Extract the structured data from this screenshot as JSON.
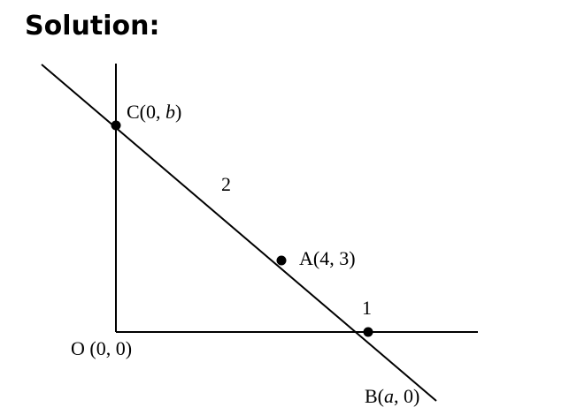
{
  "heading": "Solution:",
  "figure": {
    "label_c_pre": "C(0, ",
    "label_c_var": "b",
    "label_c_post": ")",
    "label_segment_upper": "2",
    "label_a": "A(4, 3)",
    "label_segment_lower": "1",
    "label_o": "O (0, 0)",
    "label_b_pre": "B(",
    "label_b_var": "a",
    "label_b_post": ", 0)"
  }
}
